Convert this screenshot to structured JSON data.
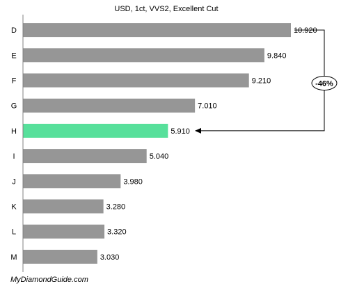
{
  "chart_data": {
    "type": "bar",
    "orientation": "horizontal",
    "title": "USD, 1ct, VVS2, Excellent Cut",
    "categories": [
      "D",
      "E",
      "F",
      "G",
      "H",
      "I",
      "J",
      "K",
      "L",
      "M"
    ],
    "values": [
      10920,
      9840,
      9210,
      7010,
      5910,
      5040,
      3980,
      3280,
      3320,
      3030
    ],
    "value_labels": [
      "10.920",
      "9.840",
      "9.210",
      "7.010",
      "5.910",
      "5.040",
      "3.980",
      "3.280",
      "3.320",
      "3.030"
    ],
    "highlight_category": "H",
    "annotation": {
      "text": "-46%",
      "from": "D",
      "to": "H"
    },
    "grid": false,
    "legend": "none"
  },
  "colors": {
    "bar": "#969696",
    "highlight": "#57e09b",
    "axis": "#808080",
    "arrow": "#000000"
  },
  "source": "MyDiamondGuide.com"
}
